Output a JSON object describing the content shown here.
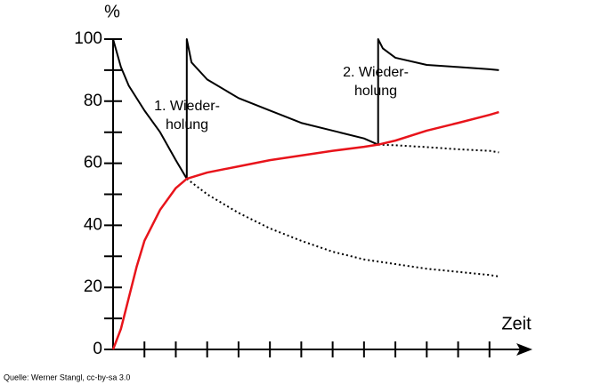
{
  "chart_data": {
    "type": "line",
    "y_label": "%",
    "x_label": "Zeit",
    "source": "Quelle: Werner Stangl, cc-by-sa 3.0",
    "xlim": [
      0,
      13
    ],
    "ylim": [
      0,
      100
    ],
    "xticks": [
      1,
      2,
      3,
      4,
      5,
      6,
      7,
      8,
      9,
      10,
      11,
      12
    ],
    "yticks": [
      0,
      20,
      40,
      60,
      80,
      100
    ],
    "yminorticks": [
      10,
      30,
      50,
      70,
      90
    ],
    "annotations": [
      [
        "1. Wieder-",
        "holung"
      ],
      [
        "2. Wieder-",
        "holung"
      ]
    ],
    "series": [
      {
        "color": "#000000",
        "dash": false,
        "x": [
          0,
          0.25,
          0.5,
          1,
          1.5,
          2,
          2.35
        ],
        "values": [
          100,
          91,
          85,
          77,
          70,
          61,
          55
        ]
      },
      {
        "color": "#000000",
        "dash": true,
        "x": [
          2.35,
          3,
          4,
          5,
          6,
          7,
          8,
          9,
          10,
          11,
          12,
          12.3
        ],
        "values": [
          55,
          50,
          44,
          39,
          35,
          31.5,
          29,
          27.5,
          26,
          25,
          24,
          23.5
        ]
      },
      {
        "color": "#000000",
        "dash": false,
        "x": [
          2.35,
          2.35,
          2.5,
          3,
          4,
          5,
          6,
          7,
          8,
          8.45
        ],
        "values": [
          55,
          100,
          92.5,
          87,
          81,
          77,
          73,
          70.5,
          68,
          66
        ]
      },
      {
        "color": "#000000",
        "dash": true,
        "x": [
          8.45,
          9,
          10,
          11,
          12,
          12.3
        ],
        "values": [
          66,
          65.8,
          65.2,
          64.5,
          64,
          63.5
        ]
      },
      {
        "color": "#000000",
        "dash": false,
        "x": [
          8.45,
          8.45,
          8.6,
          9,
          10,
          11,
          12,
          12.3
        ],
        "values": [
          66,
          100,
          97,
          94,
          91.7,
          91,
          90.3,
          90
        ]
      },
      {
        "color": "#e8141b",
        "dash": false,
        "x": [
          0,
          0.25,
          0.5,
          0.75,
          1,
          1.5,
          2,
          2.35,
          3,
          4,
          5,
          6,
          7,
          8,
          8.45,
          9,
          10,
          11,
          12,
          12.3
        ],
        "values": [
          0,
          6.6,
          16.6,
          26.6,
          35,
          45,
          52,
          55,
          57,
          59,
          61,
          62.5,
          64,
          65.3,
          66,
          67.3,
          70.5,
          73,
          75.6,
          76.5
        ]
      }
    ]
  }
}
